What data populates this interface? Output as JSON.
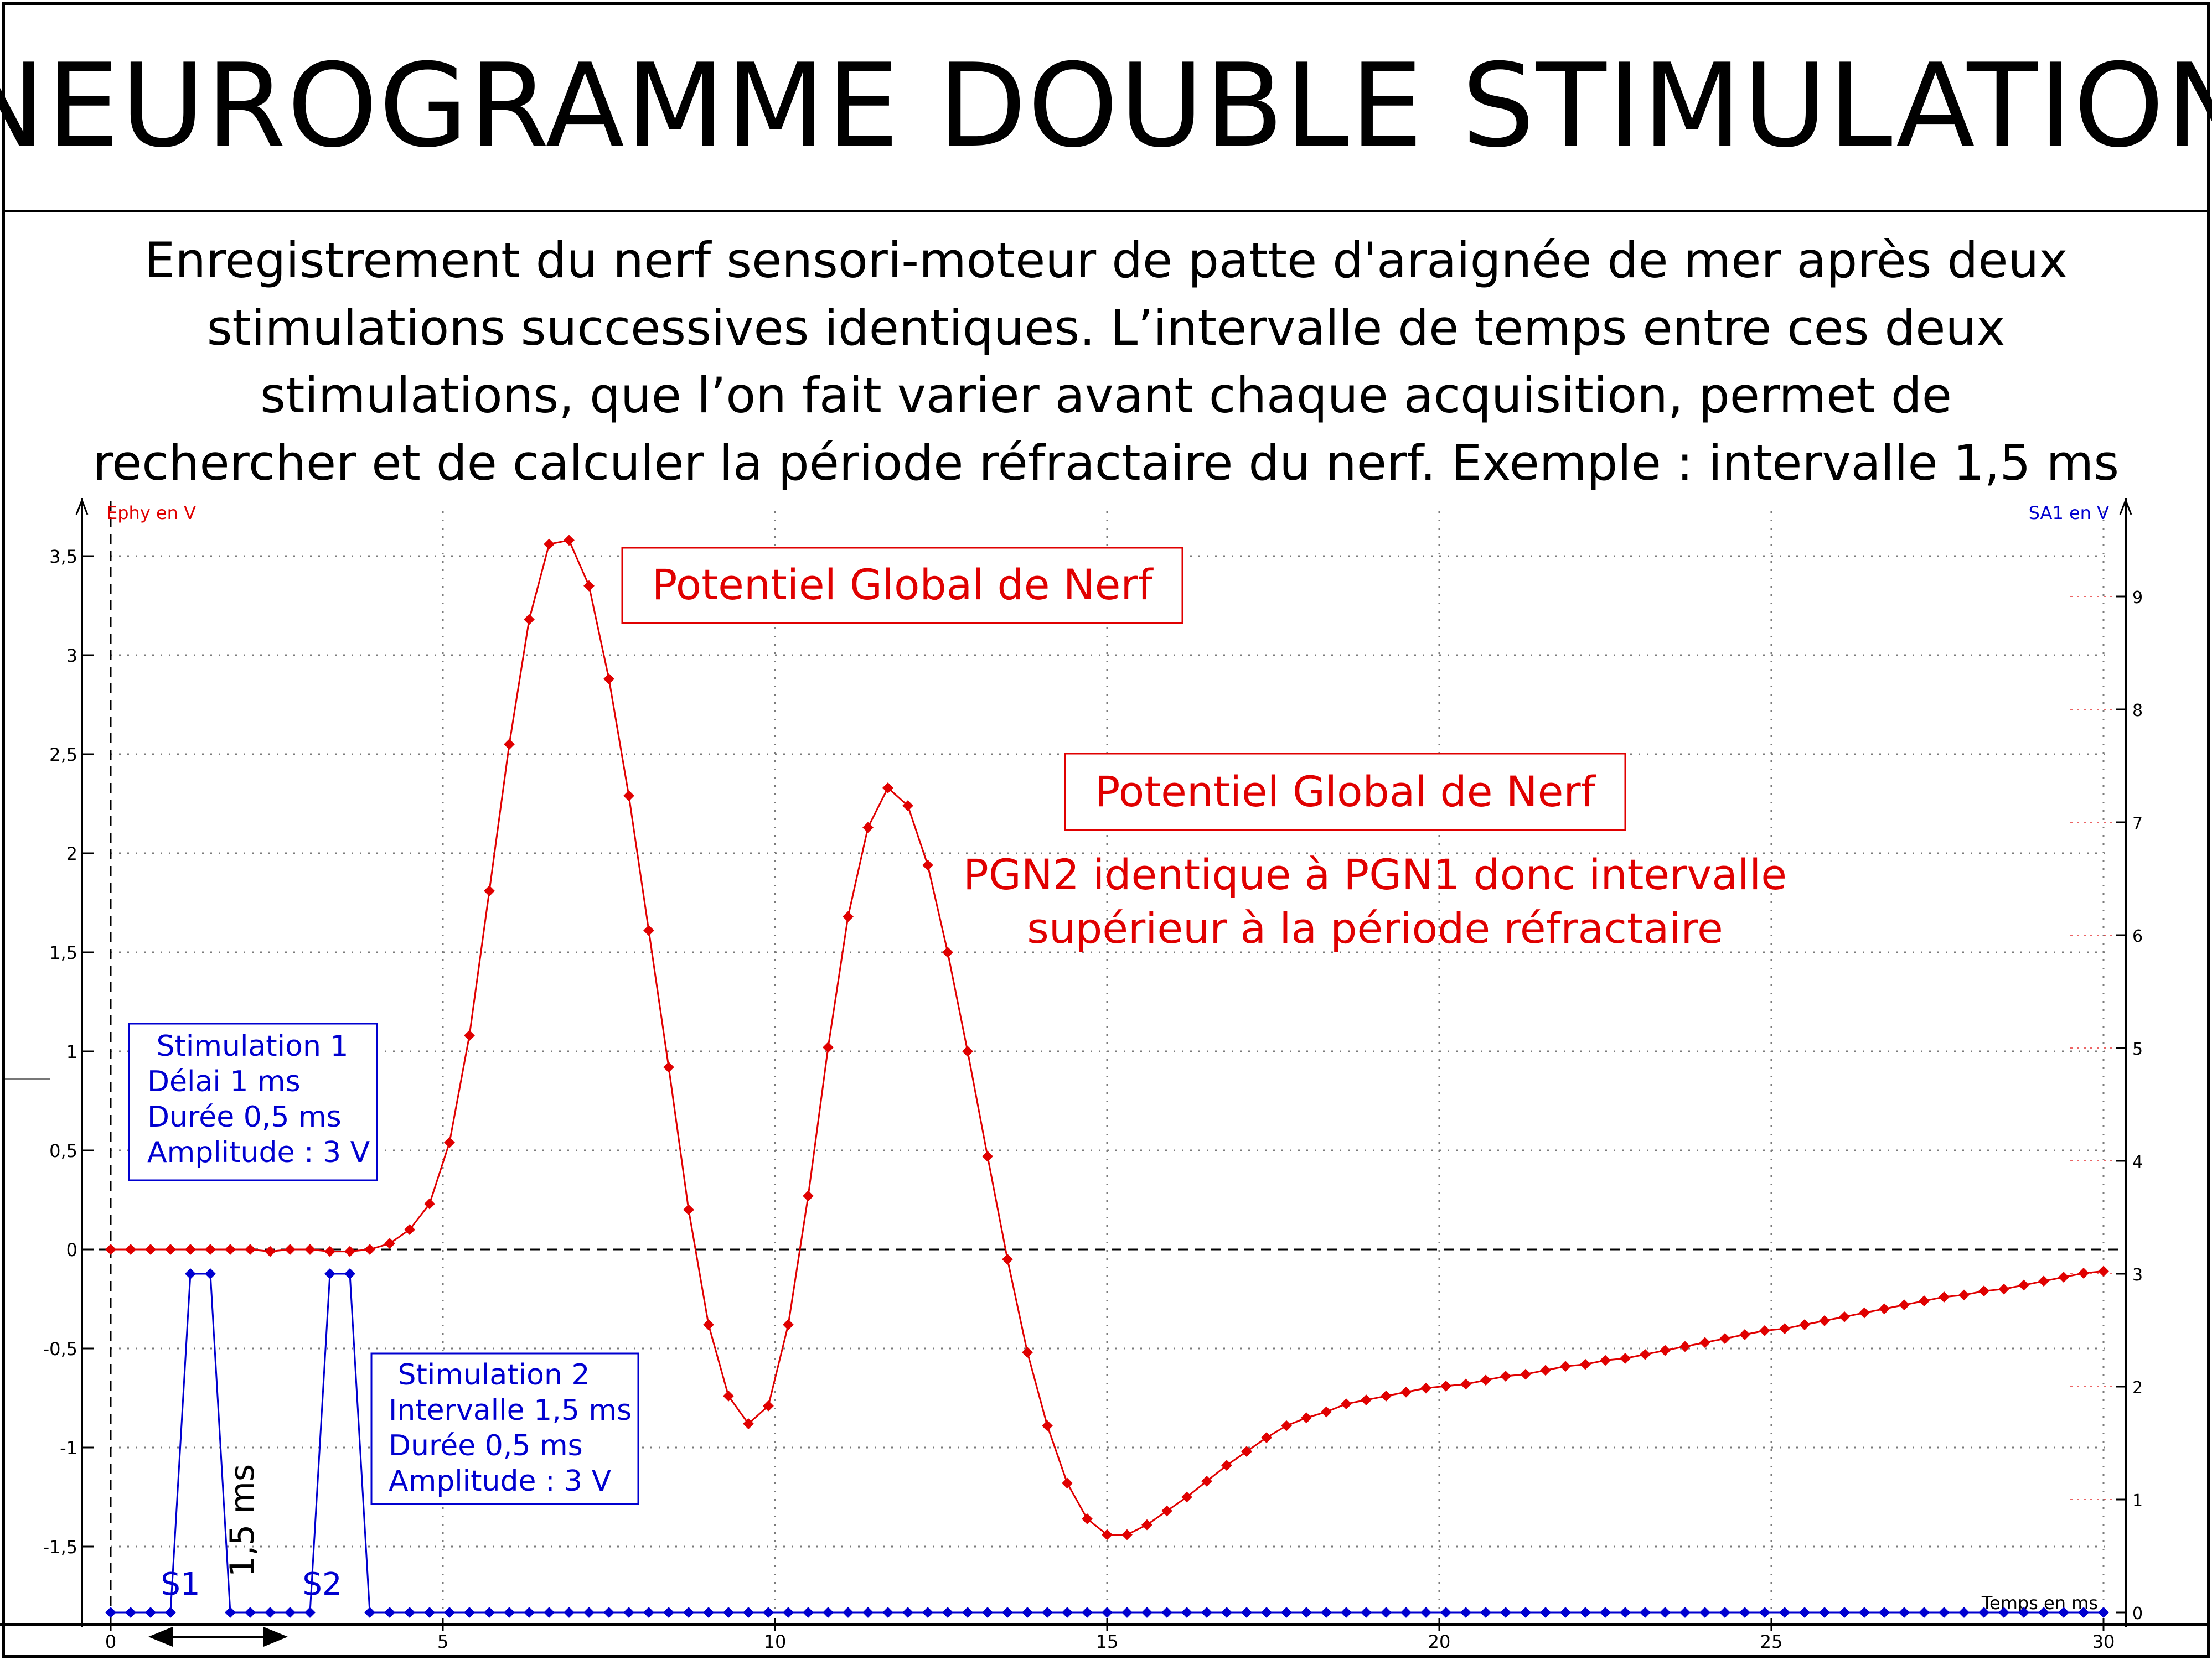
{
  "title": "NEUROGRAMME DOUBLE STIMULATION",
  "description_lines": [
    "Enregistrement du nerf sensori-moteur de patte d'araignée de mer après deux",
    "stimulations successives identiques. L’intervalle de temps entre ces deux",
    "stimulations, que l’on fait varier avant chaque acquisition, permet de",
    "rechercher et de calculer la période réfractaire du nerf. Exemple : intervalle 1,5 ms"
  ],
  "colors": {
    "ephy": "#e00000",
    "sa1": "#0000d0",
    "axis": "#000000",
    "grid": "#7a7a7a"
  },
  "chart_data": {
    "type": "line",
    "xlabel": "Temps en ms",
    "ylabel_left": "Ephy en V",
    "ylabel_right": "SA1 en V",
    "xlim": [
      0,
      30
    ],
    "ylim_left": [
      -1.85,
      3.5
    ],
    "ylim_right": [
      0,
      9
    ],
    "x_ticks": [
      0,
      5,
      10,
      15,
      20,
      25,
      30
    ],
    "x_tick_labels": [
      "0",
      "5",
      "10",
      "15",
      "20",
      "25",
      "30"
    ],
    "y_left_ticks": [
      3.5,
      3,
      2.5,
      2,
      1.5,
      1,
      0.5,
      0,
      -0.5,
      -1,
      -1.5
    ],
    "y_left_tick_labels": [
      "3,5",
      "3",
      "2,5",
      "2",
      "1,5",
      "1",
      "0,5",
      "0",
      "-0,5",
      "-1",
      "-1,5"
    ],
    "y_right_ticks": [
      9,
      8,
      7,
      6,
      5,
      4,
      3,
      2,
      1,
      0
    ],
    "y_right_tick_labels": [
      "9",
      "8",
      "7",
      "6",
      "5",
      "4",
      "3",
      "2",
      "1",
      "0"
    ],
    "grid": true,
    "series": [
      {
        "name": "Ephy en V",
        "axis": "left",
        "x": [
          0,
          0.3,
          0.6,
          0.9,
          1.2,
          1.5,
          1.8,
          2.1,
          2.4,
          2.7,
          3.0,
          3.3,
          3.6,
          3.9,
          4.2,
          4.5,
          4.8,
          5.1,
          5.4,
          5.7,
          6.0,
          6.3,
          6.6,
          6.9,
          7.2,
          7.5,
          7.8,
          8.1,
          8.4,
          8.7,
          9.0,
          9.3,
          9.6,
          9.9,
          10.2,
          10.5,
          10.8,
          11.1,
          11.4,
          11.7,
          12.0,
          12.3,
          12.6,
          12.9,
          13.2,
          13.5,
          13.8,
          14.1,
          14.4,
          14.7,
          15.0,
          15.3,
          15.6,
          15.9,
          16.2,
          16.5,
          16.8,
          17.1,
          17.4,
          17.7,
          18.0,
          18.3,
          18.6,
          18.9,
          19.2,
          19.5,
          19.8,
          20.1,
          20.4,
          20.7,
          21.0,
          21.3,
          21.6,
          21.9,
          22.2,
          22.5,
          22.8,
          23.1,
          23.4,
          23.7,
          24.0,
          24.3,
          24.6,
          24.9,
          25.2,
          25.5,
          25.8,
          26.1,
          26.4,
          26.7,
          27.0,
          27.3,
          27.6,
          27.9,
          28.2,
          28.5,
          28.8,
          29.1,
          29.4,
          29.7,
          30.0
        ],
        "values": [
          0,
          0,
          0,
          0,
          0,
          0,
          0,
          0,
          -0.01,
          0,
          0,
          -0.01,
          -0.01,
          0,
          0.03,
          0.1,
          0.23,
          0.54,
          1.08,
          1.81,
          2.55,
          3.18,
          3.56,
          3.58,
          3.35,
          2.88,
          2.29,
          1.61,
          0.92,
          0.2,
          -0.38,
          -0.74,
          -0.88,
          -0.79,
          -0.38,
          0.27,
          1.02,
          1.68,
          2.13,
          2.33,
          2.24,
          1.94,
          1.5,
          1.0,
          0.47,
          -0.05,
          -0.52,
          -0.89,
          -1.18,
          -1.36,
          -1.44,
          -1.44,
          -1.39,
          -1.32,
          -1.25,
          -1.17,
          -1.09,
          -1.02,
          -0.95,
          -0.89,
          -0.85,
          -0.82,
          -0.78,
          -0.76,
          -0.74,
          -0.72,
          -0.7,
          -0.69,
          -0.68,
          -0.66,
          -0.64,
          -0.63,
          -0.61,
          -0.59,
          -0.58,
          -0.56,
          -0.55,
          -0.53,
          -0.51,
          -0.49,
          -0.47,
          -0.45,
          -0.43,
          -0.41,
          -0.4,
          -0.38,
          -0.36,
          -0.34,
          -0.32,
          -0.3,
          -0.28,
          -0.26,
          -0.24,
          -0.23,
          -0.21,
          -0.2,
          -0.18,
          -0.16,
          -0.14,
          -0.12,
          -0.11
        ]
      },
      {
        "name": "SA1 en V",
        "axis": "right",
        "x": [
          0,
          0.3,
          0.6,
          0.9,
          1.2,
          1.5,
          1.8,
          2.1,
          2.4,
          2.7,
          3.0,
          3.3,
          3.6,
          3.9,
          4.2,
          4.5,
          4.8,
          5.1,
          5.4,
          5.7,
          6.0,
          6.3,
          6.6,
          6.9,
          7.2,
          7.5,
          7.8,
          8.1,
          8.4,
          8.7,
          9.0,
          9.3,
          9.6,
          9.9,
          10.2,
          10.5,
          10.8,
          11.1,
          11.4,
          11.7,
          12.0,
          12.3,
          12.6,
          12.9,
          13.2,
          13.5,
          13.8,
          14.1,
          14.4,
          14.7,
          15.0,
          15.3,
          15.6,
          15.9,
          16.2,
          16.5,
          16.8,
          17.1,
          17.4,
          17.7,
          18.0,
          18.3,
          18.6,
          18.9,
          19.2,
          19.5,
          19.8,
          20.1,
          20.4,
          20.7,
          21.0,
          21.3,
          21.6,
          21.9,
          22.2,
          22.5,
          22.8,
          23.1,
          23.4,
          23.7,
          24.0,
          24.3,
          24.6,
          24.9,
          25.2,
          25.5,
          25.8,
          26.1,
          26.4,
          26.7,
          27.0,
          27.3,
          27.6,
          27.9,
          28.2,
          28.5,
          28.8,
          29.1,
          29.4,
          29.7,
          30.0
        ],
        "values": [
          0,
          0,
          0,
          0,
          3,
          3,
          0,
          0,
          0,
          0,
          0,
          3,
          3,
          0,
          0,
          0,
          0,
          0,
          0,
          0,
          0,
          0,
          0,
          0,
          0,
          0,
          0,
          0,
          0,
          0,
          0,
          0,
          0,
          0,
          0,
          0,
          0,
          0,
          0,
          0,
          0,
          0,
          0,
          0,
          0,
          0,
          0,
          0,
          0,
          0,
          0,
          0,
          0,
          0,
          0,
          0,
          0,
          0,
          0,
          0,
          0,
          0,
          0,
          0,
          0,
          0,
          0,
          0,
          0,
          0,
          0,
          0,
          0,
          0,
          0,
          0,
          0,
          0,
          0,
          0,
          0,
          0,
          0,
          0,
          0,
          0,
          0,
          0,
          0,
          0,
          0,
          0,
          0,
          0,
          0,
          0,
          0,
          0,
          0,
          0,
          0
        ]
      }
    ],
    "annotations": {
      "pgn1_label": "Potentiel Global de Nerf",
      "pgn2_label": "Potentiel Global de Nerf",
      "pgn2_note_lines": [
        "PGN2 identique à PGN1 donc intervalle",
        "supérieur à la période réfractaire"
      ],
      "stim1_lines": [
        " Stimulation 1",
        "Délai 1 ms",
        "Durée 0,5 ms",
        "Amplitude : 3 V"
      ],
      "stim2_lines": [
        " Stimulation 2",
        "Intervalle 1,5 ms",
        "Durée 0,5 ms",
        "Amplitude : 3 V"
      ],
      "s1": "S1",
      "s2": "S2",
      "interval": "1,5 ms"
    }
  }
}
